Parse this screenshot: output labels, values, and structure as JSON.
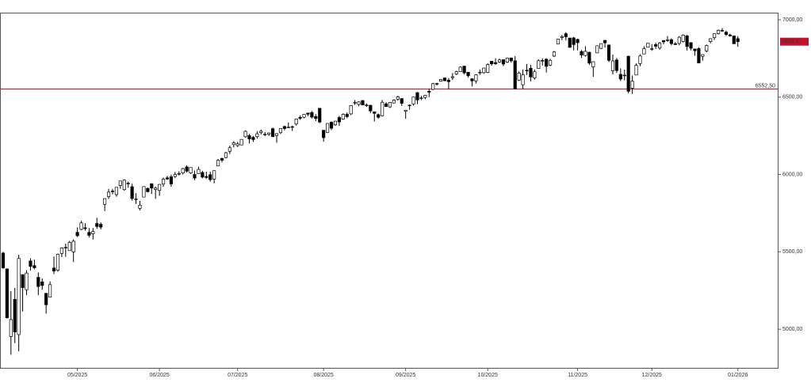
{
  "chart_data": {
    "type": "candlestick",
    "up_color": "#ffffff",
    "down_color": "#000000",
    "line_color": "#c8102e",
    "ylim": [
      4740,
      7046
    ],
    "xlim": [
      -0.8,
      198.2
    ],
    "yticks": [
      {
        "value": 5000,
        "label": "5000,00"
      },
      {
        "value": 5500,
        "label": "5500,00"
      },
      {
        "value": 6000,
        "label": "6000,00"
      },
      {
        "value": 6500,
        "label": "6500,00"
      },
      {
        "value": 7000,
        "label": "7000,00"
      }
    ],
    "xticks": [
      {
        "value": 19,
        "label": "05/2025"
      },
      {
        "value": 40,
        "label": "06/2025"
      },
      {
        "value": 60,
        "label": "07/2025"
      },
      {
        "value": 82,
        "label": "08/2025"
      },
      {
        "value": 103,
        "label": "09/2025"
      },
      {
        "value": 124,
        "label": "10/2025"
      },
      {
        "value": 147,
        "label": "11/2025"
      },
      {
        "value": 166,
        "label": "12/2025"
      },
      {
        "value": 188,
        "label": "01/2026"
      }
    ],
    "hline": {
      "value": 6552.5,
      "label": "6552,50"
    },
    "last_price": {
      "value": 6858.47,
      "label": "6858,47"
    },
    "candles": [
      [
        5492,
        5500,
        5390,
        5397
      ],
      [
        5390,
        5390,
        5070,
        5074
      ],
      [
        4953,
        5246,
        4835,
        5062
      ],
      [
        5193,
        5267,
        4910,
        4982
      ],
      [
        4965,
        5481,
        4857,
        5457
      ],
      [
        5353,
        5353,
        5115,
        5268
      ],
      [
        5255,
        5381,
        5221,
        5363
      ],
      [
        5441,
        5459,
        5379,
        5406
      ],
      [
        5411,
        5450,
        5387,
        5397
      ],
      [
        5335,
        5367,
        5220,
        5276
      ],
      [
        5306,
        5328,
        5255,
        5283
      ],
      [
        5232,
        5232,
        5101,
        5158
      ],
      [
        5207,
        5309,
        5207,
        5288
      ],
      [
        5395,
        5470,
        5356,
        5376
      ],
      [
        5381,
        5489,
        5371,
        5485
      ],
      [
        5490,
        5529,
        5466,
        5525
      ],
      [
        5529,
        5553,
        5468,
        5529
      ],
      [
        5508,
        5571,
        5506,
        5561
      ],
      [
        5500,
        5581,
        5434,
        5569
      ],
      [
        5626,
        5658,
        5596,
        5604
      ],
      [
        5645,
        5700,
        5640,
        5687
      ],
      [
        5656,
        5685,
        5637,
        5650
      ],
      [
        5626,
        5654,
        5593,
        5607
      ],
      [
        5617,
        5654,
        5580,
        5631
      ],
      [
        5683,
        5720,
        5649,
        5664
      ],
      [
        5678,
        5690,
        5645,
        5660
      ],
      [
        5807,
        5846,
        5763,
        5844
      ],
      [
        5857,
        5907,
        5842,
        5886
      ],
      [
        5893,
        5907,
        5872,
        5892
      ],
      [
        5870,
        5918,
        5856,
        5917
      ],
      [
        5929,
        5958,
        5907,
        5958
      ],
      [
        5902,
        5968,
        5895,
        5964
      ],
      [
        5944,
        5954,
        5914,
        5940
      ],
      [
        5921,
        5940,
        5831,
        5845
      ],
      [
        5842,
        5879,
        5810,
        5842
      ],
      [
        5781,
        5829,
        5768,
        5802
      ],
      [
        5854,
        5924,
        5854,
        5922
      ],
      [
        5910,
        5915,
        5884,
        5889
      ],
      [
        5940,
        5943,
        5874,
        5912
      ],
      [
        5903,
        5922,
        5843,
        5912
      ],
      [
        5897,
        5938,
        5862,
        5936
      ],
      [
        5938,
        5981,
        5920,
        5970
      ],
      [
        5978,
        5991,
        5966,
        5971
      ],
      [
        5985,
        5999,
        5921,
        5939
      ],
      [
        5987,
        6017,
        5978,
        6000
      ],
      [
        6005,
        6021,
        5994,
        6006
      ],
      [
        6010,
        6043,
        6000,
        6038
      ],
      [
        6049,
        6060,
        6013,
        6022
      ],
      [
        6010,
        6046,
        6003,
        6045
      ],
      [
        6000,
        6026,
        5963,
        5977
      ],
      [
        6005,
        6051,
        6004,
        6033
      ],
      [
        6013,
        6024,
        5975,
        5983
      ],
      [
        5987,
        6018,
        5971,
        5981
      ],
      [
        5999,
        6019,
        5953,
        5967
      ],
      [
        5970,
        6026,
        5943,
        6025
      ],
      [
        6055,
        6100,
        6054,
        6092
      ],
      [
        6104,
        6108,
        6078,
        6092
      ],
      [
        6109,
        6146,
        6105,
        6141
      ],
      [
        6150,
        6187,
        6132,
        6173
      ],
      [
        6193,
        6216,
        6175,
        6205
      ],
      [
        6187,
        6211,
        6177,
        6198
      ],
      [
        6191,
        6227,
        6189,
        6227
      ],
      [
        6244,
        6285,
        6238,
        6279
      ],
      [
        6251,
        6262,
        6201,
        6230
      ],
      [
        6240,
        6249,
        6210,
        6226
      ],
      [
        6245,
        6280,
        6232,
        6263
      ],
      [
        6271,
        6290,
        6259,
        6280
      ],
      [
        6256,
        6274,
        6248,
        6260
      ],
      [
        6260,
        6271,
        6249,
        6269
      ],
      [
        6296,
        6303,
        6243,
        6244
      ],
      [
        6252,
        6267,
        6205,
        6264
      ],
      [
        6270,
        6299,
        6262,
        6297
      ],
      [
        6310,
        6316,
        6285,
        6297
      ],
      [
        6303,
        6336,
        6301,
        6306
      ],
      [
        6306,
        6316,
        6281,
        6309
      ],
      [
        6326,
        6360,
        6316,
        6359
      ],
      [
        6369,
        6382,
        6353,
        6363
      ],
      [
        6370,
        6390,
        6363,
        6389
      ],
      [
        6397,
        6400,
        6377,
        6390
      ],
      [
        6401,
        6410,
        6362,
        6371
      ],
      [
        6375,
        6390,
        6345,
        6362
      ],
      [
        6428,
        6428,
        6332,
        6339
      ],
      [
        6286,
        6287,
        6212,
        6238
      ],
      [
        6272,
        6330,
        6271,
        6330
      ],
      [
        6338,
        6343,
        6287,
        6299
      ],
      [
        6321,
        6346,
        6314,
        6345
      ],
      [
        6368,
        6379,
        6315,
        6340
      ],
      [
        6358,
        6395,
        6353,
        6389
      ],
      [
        6389,
        6401,
        6364,
        6374
      ],
      [
        6392,
        6446,
        6384,
        6446
      ],
      [
        6466,
        6481,
        6450,
        6466
      ],
      [
        6453,
        6473,
        6441,
        6469
      ],
      [
        6478,
        6481,
        6447,
        6450
      ],
      [
        6446,
        6459,
        6437,
        6449
      ],
      [
        6447,
        6451,
        6397,
        6411
      ],
      [
        6405,
        6407,
        6343,
        6395
      ],
      [
        6387,
        6394,
        6360,
        6370
      ],
      [
        6380,
        6482,
        6375,
        6467
      ],
      [
        6457,
        6467,
        6438,
        6439
      ],
      [
        6437,
        6468,
        6430,
        6466
      ],
      [
        6462,
        6486,
        6460,
        6481
      ],
      [
        6487,
        6509,
        6477,
        6502
      ],
      [
        6491,
        6491,
        6443,
        6460
      ],
      [
        6409,
        6417,
        6360,
        6416
      ],
      [
        6444,
        6453,
        6418,
        6448
      ],
      [
        6456,
        6502,
        6445,
        6502
      ],
      [
        6529,
        6533,
        6455,
        6482
      ],
      [
        6495,
        6508,
        6481,
        6495
      ],
      [
        6498,
        6513,
        6486,
        6512
      ],
      [
        6538,
        6555,
        6500,
        6532
      ],
      [
        6550,
        6592,
        6545,
        6587
      ],
      [
        6588,
        6593,
        6575,
        6584
      ],
      [
        6603,
        6616,
        6600,
        6615
      ],
      [
        6624,
        6627,
        6603,
        6606
      ],
      [
        6610,
        6623,
        6551,
        6600
      ],
      [
        6626,
        6656,
        6610,
        6632
      ],
      [
        6650,
        6671,
        6643,
        6664
      ],
      [
        6665,
        6698,
        6664,
        6694
      ],
      [
        6700,
        6703,
        6646,
        6657
      ],
      [
        6661,
        6663,
        6627,
        6638
      ],
      [
        6618,
        6622,
        6569,
        6605
      ],
      [
        6605,
        6648,
        6588,
        6644
      ],
      [
        6661,
        6679,
        6644,
        6661
      ],
      [
        6658,
        6689,
        6651,
        6688
      ],
      [
        6660,
        6718,
        6655,
        6711
      ],
      [
        6732,
        6732,
        6703,
        6715
      ],
      [
        6723,
        6751,
        6708,
        6716
      ],
      [
        6727,
        6749,
        6721,
        6740
      ],
      [
        6742,
        6742,
        6700,
        6714
      ],
      [
        6727,
        6755,
        6721,
        6753
      ],
      [
        6753,
        6756,
        6723,
        6735
      ],
      [
        6735,
        6765,
        6551,
        6553
      ],
      [
        6610,
        6666,
        6605,
        6655
      ],
      [
        6580,
        6679,
        6552,
        6644
      ],
      [
        6674,
        6714,
        6643,
        6671
      ],
      [
        6687,
        6709,
        6602,
        6630
      ],
      [
        6624,
        6678,
        6613,
        6664
      ],
      [
        6685,
        6744,
        6684,
        6735
      ],
      [
        6737,
        6751,
        6704,
        6735
      ],
      [
        6745,
        6751,
        6659,
        6699
      ],
      [
        6707,
        6747,
        6700,
        6738
      ],
      [
        6765,
        6798,
        6759,
        6792
      ],
      [
        6843,
        6876,
        6843,
        6875
      ],
      [
        6885,
        6902,
        6868,
        6891
      ],
      [
        6910,
        6920,
        6866,
        6890
      ],
      [
        6882,
        6883,
        6818,
        6822
      ],
      [
        6883,
        6889,
        6802,
        6840
      ],
      [
        6873,
        6878,
        6802,
        6852
      ],
      [
        6795,
        6804,
        6753,
        6772
      ],
      [
        6769,
        6829,
        6762,
        6796
      ],
      [
        6790,
        6793,
        6708,
        6720
      ],
      [
        6696,
        6729,
        6631,
        6729
      ],
      [
        6786,
        6833,
        6785,
        6832
      ],
      [
        6815,
        6846,
        6811,
        6846
      ],
      [
        6867,
        6869,
        6821,
        6851
      ],
      [
        6837,
        6838,
        6727,
        6738
      ],
      [
        6670,
        6775,
        6646,
        6734
      ],
      [
        6740,
        6753,
        6657,
        6672
      ],
      [
        6647,
        6686,
        6604,
        6617
      ],
      [
        6639,
        6678,
        6608,
        6642
      ],
      [
        6764,
        6768,
        6525,
        6538
      ],
      [
        6558,
        6640,
        6521,
        6603
      ],
      [
        6643,
        6718,
        6643,
        6705
      ],
      [
        6717,
        6777,
        6700,
        6766
      ],
      [
        6779,
        6829,
        6779,
        6813
      ],
      [
        6823,
        6849,
        6821,
        6849
      ],
      [
        6813,
        6843,
        6799,
        6813
      ],
      [
        6840,
        6852,
        6812,
        6829
      ],
      [
        6817,
        6857,
        6806,
        6850
      ],
      [
        6866,
        6866,
        6841,
        6857
      ],
      [
        6866,
        6895,
        6857,
        6870
      ],
      [
        6871,
        6880,
        6835,
        6846
      ],
      [
        6845,
        6856,
        6837,
        6840
      ],
      [
        6847,
        6895,
        6835,
        6887
      ],
      [
        6860,
        6906,
        6853,
        6901
      ],
      [
        6896,
        6902,
        6801,
        6827
      ],
      [
        6852,
        6855,
        6802,
        6816
      ],
      [
        6811,
        6813,
        6768,
        6800
      ],
      [
        6814,
        6822,
        6721,
        6721
      ],
      [
        6764,
        6776,
        6736,
        6775
      ],
      [
        6799,
        6840,
        6790,
        6834
      ],
      [
        6859,
        6878,
        6848,
        6878
      ],
      [
        6884,
        6910,
        6870,
        6910
      ],
      [
        6911,
        6937,
        6906,
        6932
      ],
      [
        6931,
        6946,
        6923,
        6930
      ],
      [
        6920,
        6930,
        6896,
        6905
      ],
      [
        6902,
        6910,
        6890,
        6896
      ],
      [
        6896,
        6898,
        6845,
        6845
      ],
      [
        6878,
        6894,
        6825,
        6858.47
      ]
    ]
  }
}
